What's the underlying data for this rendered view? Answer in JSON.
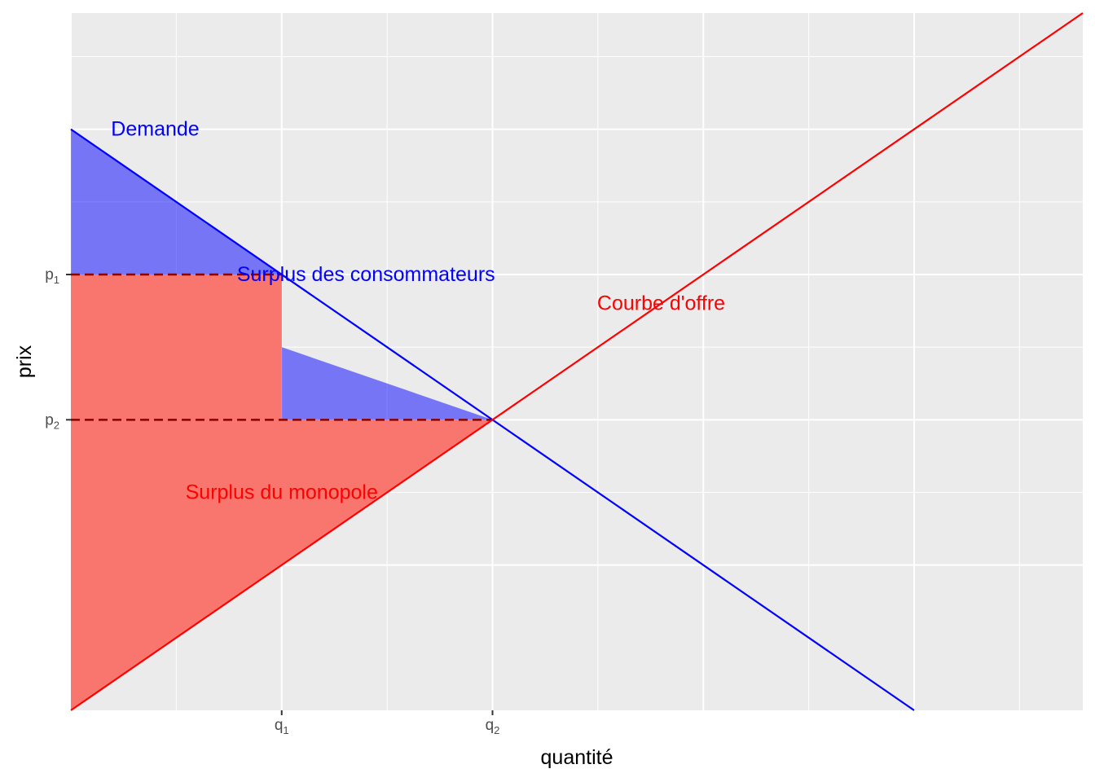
{
  "chart_data": {
    "type": "line",
    "title": "",
    "xlabel": "quantité",
    "ylabel": "prix",
    "xlim": [
      0,
      9.6
    ],
    "ylim": [
      0,
      9.6
    ],
    "grid": true,
    "background": "#ebebeb",
    "x_ticks": [
      {
        "value": 2,
        "base": "q",
        "sub": "1"
      },
      {
        "value": 4,
        "base": "q",
        "sub": "2"
      }
    ],
    "y_ticks": [
      {
        "value": 6,
        "base": "p",
        "sub": "1"
      },
      {
        "value": 4,
        "base": "p",
        "sub": "2"
      }
    ],
    "series": [
      {
        "name": "Demande",
        "color": "#0000ff",
        "x": [
          0,
          8
        ],
        "y": [
          8,
          0
        ]
      },
      {
        "name": "Courbe d'offre",
        "color": "#ff0000",
        "x": [
          0,
          9.6
        ],
        "y": [
          0,
          9.6
        ]
      }
    ],
    "areas": [
      {
        "label": "Surplus des consommateurs",
        "color": "#0000ff",
        "opacity": 0.5,
        "x": [
          0,
          0,
          2,
          2,
          4
        ],
        "y": [
          6,
          8,
          6,
          4,
          4
        ]
      },
      {
        "label": "Surplus du monopole",
        "color": "#f8766d",
        "opacity": 1,
        "x": [
          0,
          4,
          2,
          2,
          0
        ],
        "y": [
          0,
          4,
          4,
          6,
          6
        ]
      }
    ],
    "reference_lines": [
      {
        "type": "h",
        "y": 6,
        "x_from": 0,
        "x_to": 2,
        "color": "#8b0000",
        "dash": true
      },
      {
        "type": "h",
        "y": 4,
        "x_from": 0,
        "x_to": 4,
        "color": "#8b0000",
        "dash": true
      }
    ],
    "annotations": [
      {
        "text": "Demande",
        "x": 0.8,
        "y": 8,
        "color": "#0000ff"
      },
      {
        "text": "Surplus des consommateurs",
        "x": 2.8,
        "y": 6,
        "color": "#0000ff"
      },
      {
        "text": "Courbe d'offre",
        "x": 5.6,
        "y": 5.6,
        "color": "#ff0000"
      },
      {
        "text": "Surplus du monopole",
        "x": 2,
        "y": 3,
        "color": "#ff0000"
      }
    ]
  }
}
